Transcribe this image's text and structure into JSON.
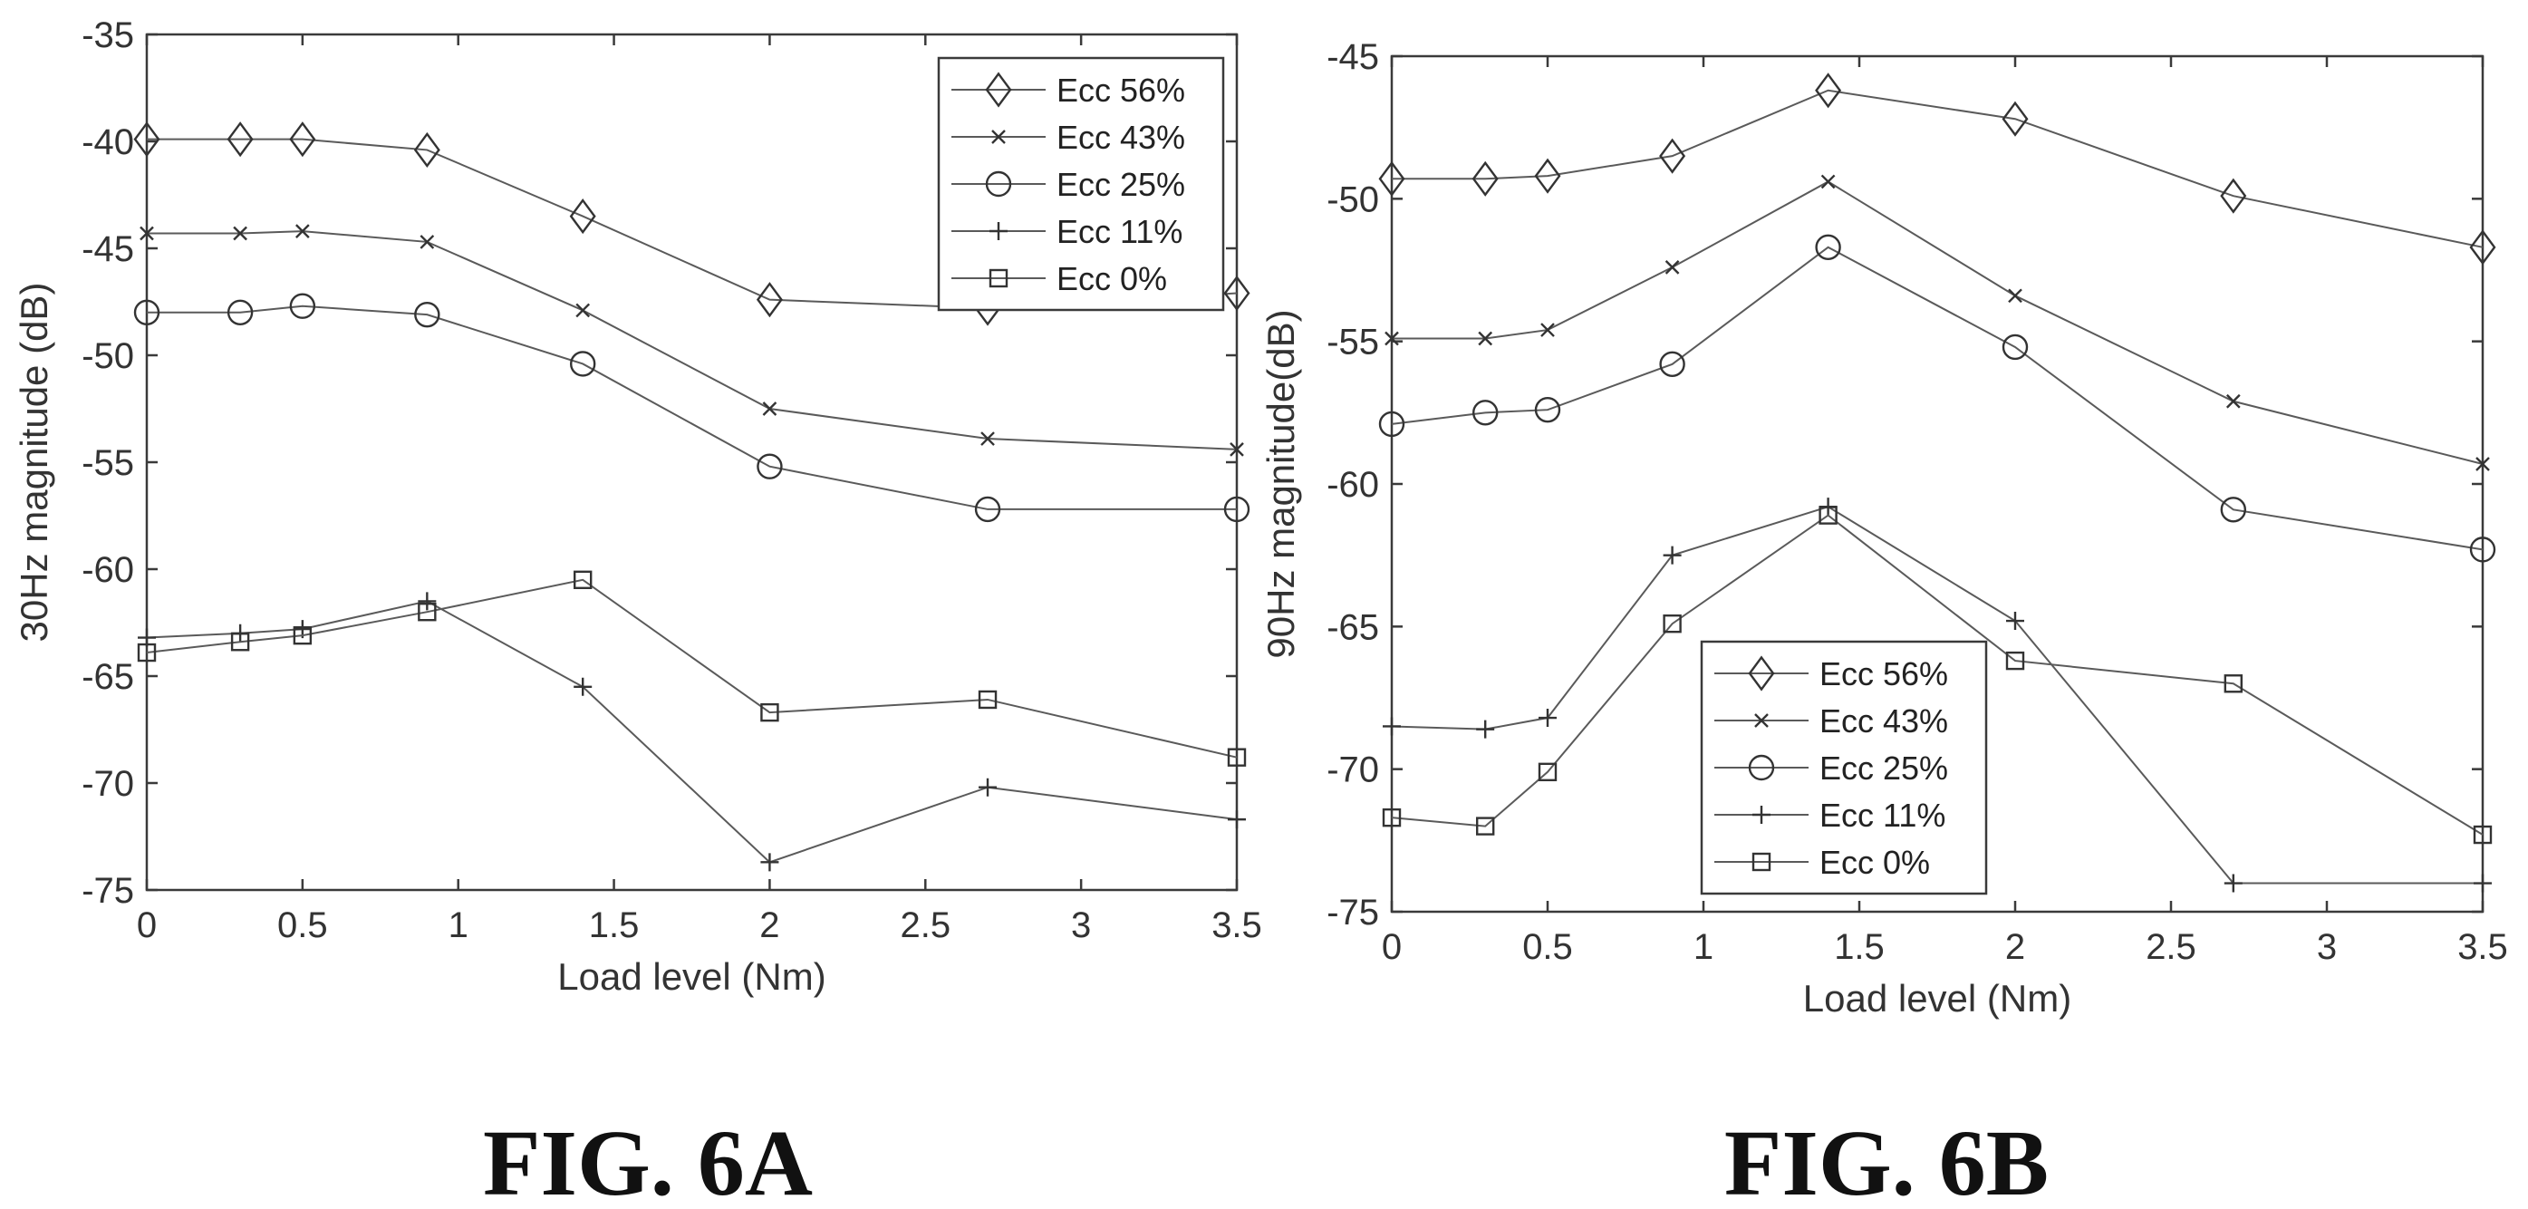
{
  "chart_data": [
    {
      "type": "line",
      "caption": "FIG. 6A",
      "xlabel": "Load level (Nm)",
      "ylabel": "30Hz magnitude (dB)",
      "xlim": [
        0,
        3.5
      ],
      "ylim": [
        -75,
        -35
      ],
      "xticks": [
        0,
        0.5,
        1,
        1.5,
        2,
        2.5,
        3,
        3.5
      ],
      "xtick_labels": [
        "0",
        "0.5",
        "1",
        "1.5",
        "2",
        "2.5",
        "3",
        "3.5"
      ],
      "yticks": [
        -75,
        -70,
        -65,
        -60,
        -55,
        -50,
        -45,
        -40,
        -35
      ],
      "ytick_labels": [
        "-75",
        "-70",
        "-65",
        "-60",
        "-55",
        "-50",
        "-45",
        "-40",
        "-35"
      ],
      "grid": false,
      "legend_position": "top-right",
      "x": [
        0,
        0.3,
        0.5,
        0.9,
        1.4,
        2.0,
        2.7,
        3.5
      ],
      "series": [
        {
          "name": "Ecc 56%",
          "marker": "diamond",
          "values": [
            -39.9,
            -39.9,
            -39.9,
            -40.4,
            -43.5,
            -47.4,
            -47.8,
            -47.1
          ]
        },
        {
          "name": "Ecc 43%",
          "marker": "x",
          "values": [
            -44.3,
            -44.3,
            -44.2,
            -44.7,
            -47.9,
            -52.5,
            -53.9,
            -54.4
          ]
        },
        {
          "name": "Ecc 25%",
          "marker": "circle",
          "values": [
            -48.0,
            -48.0,
            -47.7,
            -48.1,
            -50.4,
            -55.2,
            -57.2,
            -57.2
          ]
        },
        {
          "name": "Ecc 11%",
          "marker": "plus",
          "values": [
            -63.2,
            -63.0,
            -62.8,
            -61.5,
            -65.5,
            -73.7,
            -70.2,
            -71.7
          ]
        },
        {
          "name": "Ecc 0%",
          "marker": "square",
          "values": [
            -63.9,
            -63.4,
            -63.1,
            -62.0,
            -60.5,
            -66.7,
            -66.1,
            -68.8
          ]
        }
      ]
    },
    {
      "type": "line",
      "caption": "FIG. 6B",
      "xlabel": "Load level (Nm)",
      "ylabel": "90Hz magnitude(dB)",
      "xlim": [
        0,
        3.5
      ],
      "ylim": [
        -75,
        -45
      ],
      "xticks": [
        0,
        0.5,
        1,
        1.5,
        2,
        2.5,
        3,
        3.5
      ],
      "xtick_labels": [
        "0",
        "0.5",
        "1",
        "1.5",
        "2",
        "2.5",
        "3",
        "3.5"
      ],
      "yticks": [
        -75,
        -70,
        -65,
        -60,
        -55,
        -50,
        -45
      ],
      "ytick_labels": [
        "-75",
        "-70",
        "-65",
        "-60",
        "-55",
        "-50",
        "-45"
      ],
      "grid": false,
      "legend_position": "bottom-center",
      "x": [
        0,
        0.3,
        0.5,
        0.9,
        1.4,
        2.0,
        2.7,
        3.5
      ],
      "series": [
        {
          "name": "Ecc 56%",
          "marker": "diamond",
          "values": [
            -49.3,
            -49.3,
            -49.2,
            -48.5,
            -46.2,
            -47.2,
            -49.9,
            -51.7
          ]
        },
        {
          "name": "Ecc 43%",
          "marker": "x",
          "values": [
            -54.9,
            -54.9,
            -54.6,
            -52.4,
            -49.4,
            -53.4,
            -57.1,
            -59.3
          ]
        },
        {
          "name": "Ecc 25%",
          "marker": "circle",
          "values": [
            -57.9,
            -57.5,
            -57.4,
            -55.8,
            -51.7,
            -55.2,
            -60.9,
            -62.3
          ]
        },
        {
          "name": "Ecc 11%",
          "marker": "plus",
          "values": [
            -68.5,
            -68.6,
            -68.2,
            -62.5,
            -60.8,
            -64.8,
            -74.0,
            -74.0
          ]
        },
        {
          "name": "Ecc 0%",
          "marker": "square",
          "values": [
            -71.7,
            -72.0,
            -70.1,
            -64.9,
            -61.1,
            -66.2,
            -67.0,
            -72.3
          ]
        }
      ]
    }
  ]
}
